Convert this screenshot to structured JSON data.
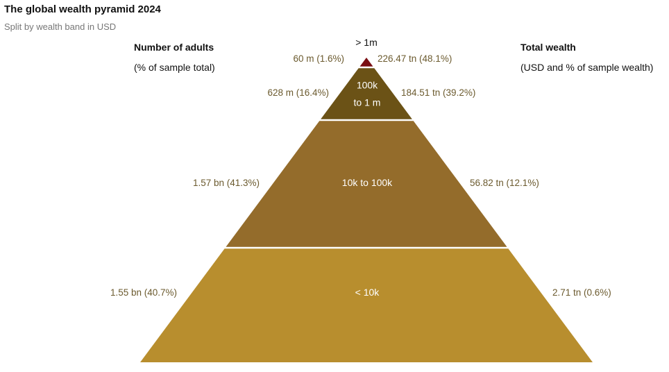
{
  "title": "The global wealth pyramid 2024",
  "subtitle": "Split by wealth band in USD",
  "left_header": {
    "title": "Number of adults",
    "subtitle": "(% of sample total)"
  },
  "right_header": {
    "title": "Total wealth",
    "subtitle": "(USD and % of sample wealth)"
  },
  "chart_data": {
    "type": "pyramid",
    "bands": [
      {
        "band": "> 1m",
        "band_lines": [
          "> 1m"
        ],
        "adults_label": "60 m (1.6%)",
        "adults_pct": 1.6,
        "wealth_label": "226.47 tn (48.1%)",
        "wealth_pct": 48.1,
        "color": "#7a0e12"
      },
      {
        "band": "100k to 1 m",
        "band_lines": [
          "100k",
          "to 1 m"
        ],
        "adults_label": "628 m (16.4%)",
        "adults_pct": 16.4,
        "wealth_label": "184.51 tn (39.2%)",
        "wealth_pct": 39.2,
        "color": "#6b5216"
      },
      {
        "band": "10k to 100k",
        "band_lines": [
          "10k to 100k"
        ],
        "adults_label": "1.57 bn (41.3%)",
        "adults_pct": 41.3,
        "wealth_label": "56.82 tn (12.1%)",
        "wealth_pct": 12.1,
        "color": "#946c2b"
      },
      {
        "band": "< 10k",
        "band_lines": [
          "< 10k"
        ],
        "adults_label": "1.55 bn (40.7%)",
        "adults_pct": 40.7,
        "wealth_label": "2.71 tn (0.6%)",
        "wealth_pct": 0.6,
        "color": "#b88e2e"
      }
    ]
  }
}
